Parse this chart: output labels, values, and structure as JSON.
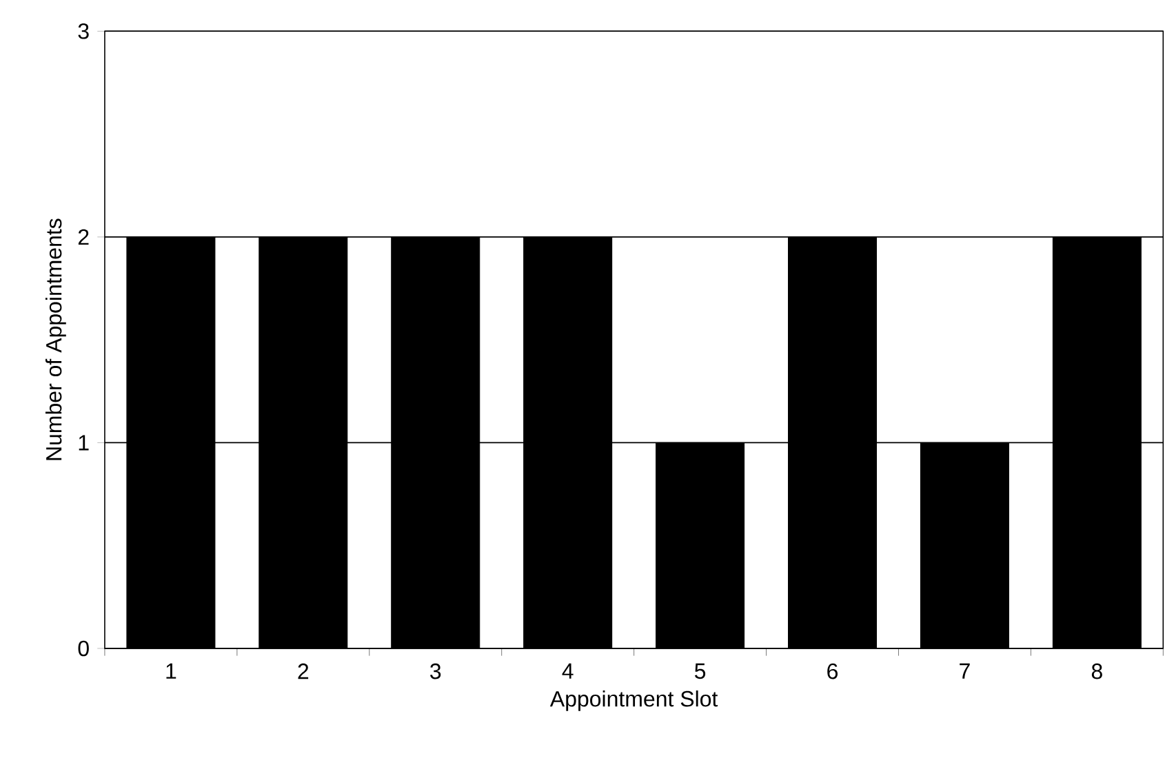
{
  "chart_data": {
    "type": "bar",
    "xlabel": "Appointment Slot",
    "ylabel": "Number of Appointments",
    "categories": [
      "1",
      "2",
      "3",
      "4",
      "5",
      "6",
      "7",
      "8"
    ],
    "values": [
      2,
      2,
      2,
      2,
      1,
      2,
      1,
      2
    ],
    "color": "#000000",
    "ylim": [
      0,
      3
    ],
    "yticks": [
      0,
      1,
      2,
      3
    ],
    "grid": "y"
  }
}
